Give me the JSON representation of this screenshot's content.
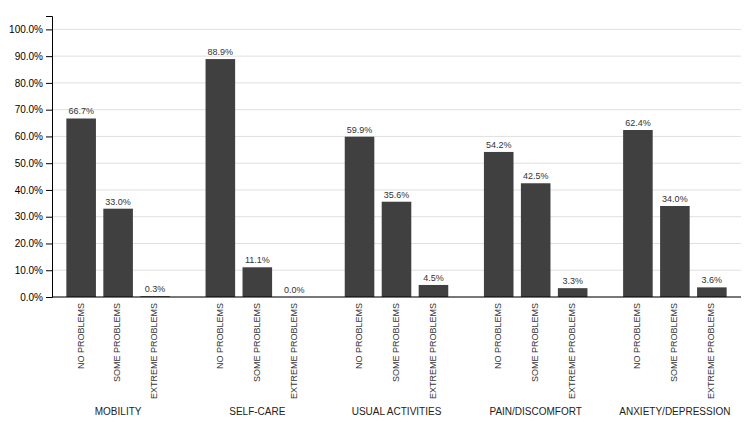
{
  "chart_data": {
    "type": "bar",
    "categories": [
      "MOBILITY",
      "SELF-CARE",
      "USUAL ACTIVITIES",
      "PAIN/DISCOMFORT",
      "ANXIETY/DEPRESSION"
    ],
    "series": [
      {
        "name": "NO PROBLEMS",
        "color": "#404040",
        "values": [
          66.7,
          88.9,
          59.9,
          54.2,
          62.4
        ],
        "value_labels": [
          "66.7%",
          "88.9%",
          "59.9%",
          "54.2%",
          "62.4%"
        ]
      },
      {
        "name": "SOME PROBLEMS",
        "color": "#404040",
        "values": [
          33.0,
          11.1,
          35.6,
          42.5,
          34.0
        ],
        "value_labels": [
          "33.0%",
          "11.1%",
          "35.6%",
          "42.5%",
          "34.0%"
        ]
      },
      {
        "name": "EXTREME PROBLEMS",
        "color": "#404040",
        "values": [
          0.3,
          0.0,
          4.5,
          3.3,
          3.6
        ],
        "value_labels": [
          "0.3%",
          "0.0%",
          "4.5%",
          "3.3%",
          "3.6%"
        ]
      }
    ],
    "ylim": [
      0,
      105
    ],
    "yticks": [
      {
        "value": 0,
        "label": "0.0%"
      },
      {
        "value": 10,
        "label": "10.0%"
      },
      {
        "value": 20,
        "label": "20.0%"
      },
      {
        "value": 30,
        "label": "30.0%"
      },
      {
        "value": 40,
        "label": "40.0%"
      },
      {
        "value": 50,
        "label": "50.0%"
      },
      {
        "value": 60,
        "label": "60.0%"
      },
      {
        "value": 70,
        "label": "70.0%"
      },
      {
        "value": 80,
        "label": "80.0%"
      },
      {
        "value": 90,
        "label": "90.0%"
      },
      {
        "value": 100,
        "label": "100.0%"
      }
    ],
    "grid": true,
    "data_labels": true
  }
}
